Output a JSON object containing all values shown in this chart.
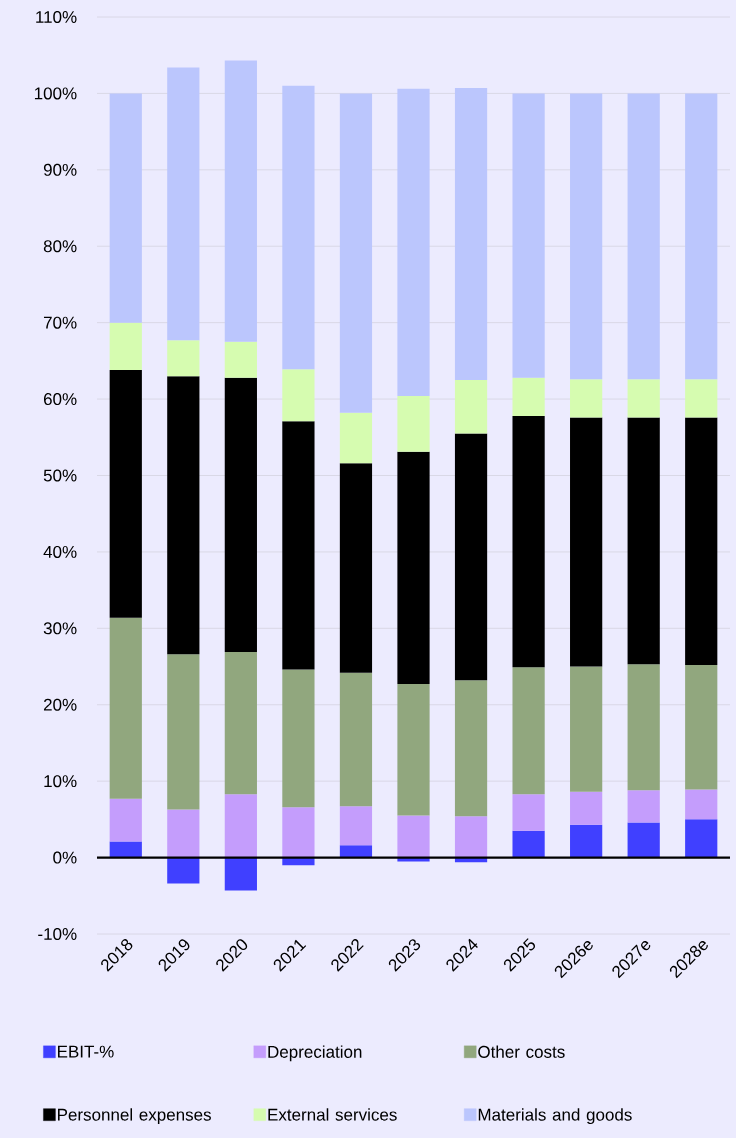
{
  "chart_data": {
    "type": "bar",
    "stacked": true,
    "grid": "y",
    "legend": "bottom",
    "categories": [
      "2018",
      "2019",
      "2020",
      "2021",
      "2022",
      "2023",
      "2024",
      "2025",
      "2026e",
      "2027e",
      "2028e"
    ],
    "series": [
      {
        "name": "EBIT-%",
        "color": "#4040ff",
        "values": [
          2.1,
          -3.4,
          -4.3,
          -1.0,
          1.6,
          -0.5,
          -0.6,
          3.5,
          4.3,
          4.6,
          5.0
        ]
      },
      {
        "name": "Depreciation",
        "color": "#c49dfc",
        "values": [
          5.6,
          6.3,
          8.3,
          6.6,
          5.1,
          5.5,
          5.4,
          4.8,
          4.3,
          4.2,
          3.9
        ]
      },
      {
        "name": "Other costs",
        "color": "#91a77e",
        "values": [
          23.7,
          20.3,
          18.6,
          18.0,
          17.5,
          17.2,
          17.8,
          16.6,
          16.4,
          16.5,
          16.3
        ]
      },
      {
        "name": "Personnel expenses",
        "color": "#000000",
        "values": [
          32.4,
          36.4,
          35.9,
          32.5,
          27.4,
          30.4,
          32.3,
          32.9,
          32.6,
          32.3,
          32.4
        ]
      },
      {
        "name": "External services",
        "color": "#d6fcb0",
        "values": [
          6.2,
          4.7,
          4.7,
          6.8,
          6.6,
          7.3,
          7.0,
          5.0,
          5.0,
          5.0,
          5.0
        ]
      },
      {
        "name": "Materials and goods",
        "color": "#bbc6fd",
        "values": [
          30.0,
          35.7,
          36.8,
          37.1,
          41.8,
          40.2,
          38.2,
          37.2,
          37.4,
          37.4,
          37.4
        ]
      }
    ],
    "ylim": [
      -10,
      110
    ],
    "yticks": [
      {
        "value": -10,
        "label": "-10%"
      },
      {
        "value": 0,
        "label": "0%"
      },
      {
        "value": 10,
        "label": "10%"
      },
      {
        "value": 20,
        "label": "20%"
      },
      {
        "value": 30,
        "label": "30%"
      },
      {
        "value": 40,
        "label": "40%"
      },
      {
        "value": 50,
        "label": "50%"
      },
      {
        "value": 60,
        "label": "60%"
      },
      {
        "value": 70,
        "label": "70%"
      },
      {
        "value": 80,
        "label": "80%"
      },
      {
        "value": 90,
        "label": "90%"
      },
      {
        "value": 100,
        "label": "100%"
      },
      {
        "value": 110,
        "label": "110%"
      }
    ]
  }
}
